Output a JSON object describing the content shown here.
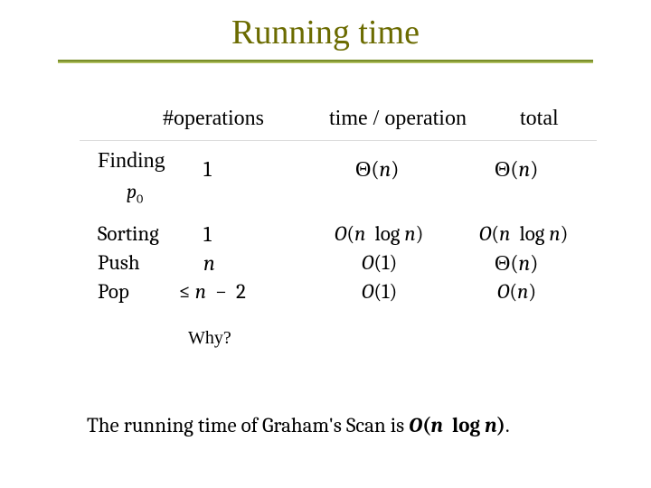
{
  "title": "Running time",
  "colors": {
    "title": "#6b6b00",
    "rule_top": "#7b8f2a",
    "rule_bottom": "#b9c86a",
    "text": "#000000",
    "subrule": "#9a9a9a",
    "background": "#ffffff"
  },
  "headers": {
    "ops": "#operations",
    "tpo": "time / operation",
    "total": "total"
  },
  "rows": {
    "finding": {
      "label": "Finding",
      "sublabel_var": "p",
      "sublabel_sub": "0",
      "ops": "1",
      "tpo": "Θ(n)",
      "total": "Θ(n)"
    },
    "sorting": {
      "label": "Sorting",
      "ops": "1",
      "tpo": "O(n  log n)",
      "total": "O(n  log n)"
    },
    "push": {
      "label": "Push",
      "ops": "n",
      "tpo": "O(1)",
      "total": "Θ(n)"
    },
    "pop": {
      "label": "Pop",
      "ops": "≤ n  −  2",
      "tpo": "O(1)",
      "total": "O(n)"
    }
  },
  "why": "Why?",
  "conclusion": {
    "prefix": "The running time of Graham's Scan is ",
    "big": "O(n  log n)",
    "suffix": "."
  },
  "fonts": {
    "title_size_pt": 38,
    "header_size_pt": 24,
    "body_size_pt": 23,
    "why_size_pt": 20,
    "family_serif": "Times New Roman",
    "family_math": "Cambria"
  }
}
